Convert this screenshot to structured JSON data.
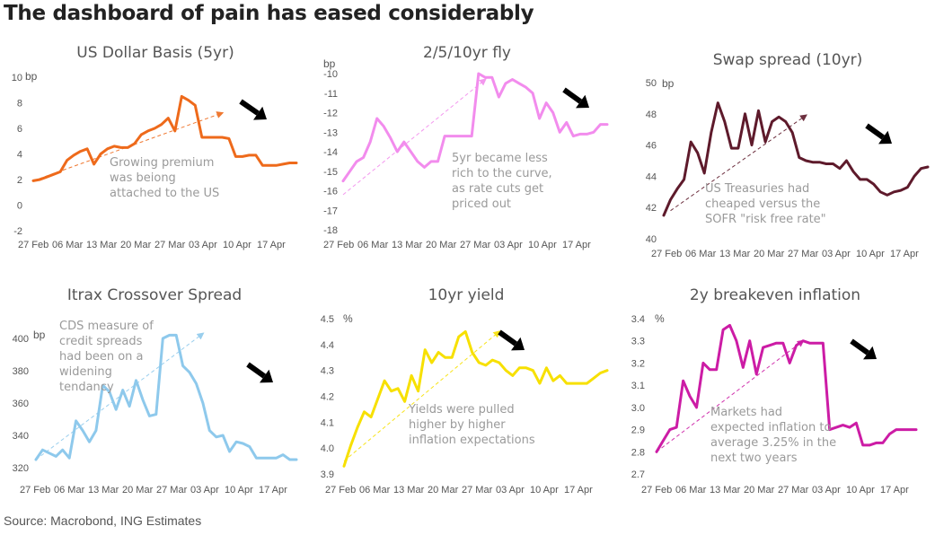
{
  "title": "The dashboard of pain has eased considerably",
  "source": "Source: Macrobond, ING Estimates",
  "chart_data": [
    {
      "type": "line",
      "title": "US Dollar Basis (5yr)",
      "unit": "bp",
      "color": "#ee6a1b",
      "x": [
        "27 Feb",
        "28 Feb",
        "03 Mar",
        "04 Mar",
        "05 Mar",
        "06 Mar",
        "07 Mar",
        "10 Mar",
        "11 Mar",
        "12 Mar",
        "13 Mar",
        "14 Mar",
        "17 Mar",
        "18 Mar",
        "19 Mar",
        "20 Mar",
        "21 Mar",
        "24 Mar",
        "25 Mar",
        "26 Mar",
        "27 Mar",
        "28 Mar",
        "31 Mar",
        "01 Apr",
        "02 Apr",
        "03 Apr",
        "04 Apr",
        "07 Apr",
        "08 Apr",
        "09 Apr",
        "10 Apr",
        "11 Apr",
        "14 Apr",
        "15 Apr",
        "16 Apr",
        "17 Apr",
        "18 Apr",
        "21 Apr",
        "22 Apr",
        "23 Apr"
      ],
      "y": [
        1.9,
        2.0,
        2.2,
        2.4,
        2.6,
        3.5,
        3.9,
        4.2,
        4.4,
        3.2,
        4.0,
        4.4,
        4.6,
        4.5,
        4.5,
        4.8,
        5.5,
        5.8,
        6.0,
        6.3,
        6.8,
        5.8,
        8.5,
        8.2,
        7.8,
        5.3,
        5.3,
        5.3,
        5.3,
        5.2,
        3.8,
        3.8,
        3.9,
        3.9,
        3.1,
        3.1,
        3.1,
        3.2,
        3.3,
        3.3
      ],
      "ylim": [
        -2,
        10
      ],
      "yticks": [
        -2,
        0,
        2,
        4,
        6,
        8,
        10
      ],
      "xtick_labels": [
        "27 Feb",
        "06 Mar",
        "13 Mar",
        "20 Mar",
        "27 Mar",
        "03 Apr",
        "10 Apr",
        "17 Apr"
      ],
      "annotation": [
        "Growing premium",
        "was beiong",
        "attached to the US"
      ]
    },
    {
      "type": "line",
      "title": "2/5/10yr fly",
      "unit": "bp",
      "color": "#f28ced",
      "x": [
        "27 Feb",
        "28 Feb",
        "03 Mar",
        "04 Mar",
        "05 Mar",
        "06 Mar",
        "07 Mar",
        "10 Mar",
        "11 Mar",
        "12 Mar",
        "13 Mar",
        "14 Mar",
        "17 Mar",
        "18 Mar",
        "19 Mar",
        "20 Mar",
        "21 Mar",
        "24 Mar",
        "25 Mar",
        "26 Mar",
        "27 Mar",
        "28 Mar",
        "31 Mar",
        "01 Apr",
        "02 Apr",
        "03 Apr",
        "04 Apr",
        "07 Apr",
        "08 Apr",
        "09 Apr",
        "10 Apr",
        "11 Apr",
        "14 Apr",
        "15 Apr",
        "16 Apr",
        "17 Apr",
        "18 Apr",
        "21 Apr",
        "22 Apr",
        "23 Apr"
      ],
      "y": [
        -15.5,
        -15.0,
        -14.5,
        -14.3,
        -13.5,
        -12.3,
        -12.7,
        -13.3,
        -14.0,
        -13.5,
        -14.0,
        -14.5,
        -14.8,
        -14.5,
        -14.5,
        -13.2,
        -13.2,
        -13.2,
        -13.2,
        -13.2,
        -10.0,
        -10.2,
        -10.2,
        -11.2,
        -10.5,
        -10.3,
        -10.5,
        -10.7,
        -11.0,
        -12.3,
        -11.5,
        -12.0,
        -13.0,
        -12.5,
        -13.2,
        -13.1,
        -13.1,
        -13.0,
        -12.6,
        -12.6
      ],
      "ylim": [
        -18,
        -10
      ],
      "yticks": [
        -18,
        -17,
        -16,
        -15,
        -14,
        -13,
        -12,
        -11,
        -10
      ],
      "xtick_labels": [
        "27 Feb",
        "06 Mar",
        "13 Mar",
        "20 Mar",
        "27 Mar",
        "03 Apr",
        "10 Apr",
        "17 Apr"
      ],
      "annotation": [
        "5yr became less",
        "rich to the curve,",
        "as rate cuts get",
        "priced out"
      ]
    },
    {
      "type": "line",
      "title": "Swap spread (10yr)",
      "unit": "bp",
      "color": "#5e1a2b",
      "x": [
        "27 Feb",
        "28 Feb",
        "03 Mar",
        "04 Mar",
        "05 Mar",
        "06 Mar",
        "07 Mar",
        "10 Mar",
        "11 Mar",
        "12 Mar",
        "13 Mar",
        "14 Mar",
        "17 Mar",
        "18 Mar",
        "19 Mar",
        "20 Mar",
        "21 Mar",
        "24 Mar",
        "25 Mar",
        "26 Mar",
        "27 Mar",
        "28 Mar",
        "31 Mar",
        "01 Apr",
        "02 Apr",
        "03 Apr",
        "04 Apr",
        "07 Apr",
        "08 Apr",
        "09 Apr",
        "10 Apr",
        "11 Apr",
        "14 Apr",
        "15 Apr",
        "16 Apr",
        "17 Apr",
        "18 Apr",
        "21 Apr",
        "22 Apr",
        "23 Apr"
      ],
      "y": [
        41.5,
        42.5,
        43.2,
        43.8,
        46.2,
        45.5,
        44.2,
        46.8,
        48.7,
        47.5,
        45.8,
        45.8,
        48.0,
        46.0,
        48.2,
        46.2,
        47.5,
        47.8,
        47.5,
        46.8,
        45.2,
        45.0,
        44.9,
        44.9,
        44.8,
        44.8,
        44.5,
        45.0,
        44.3,
        43.8,
        43.8,
        43.5,
        43.0,
        42.8,
        43.0,
        43.1,
        43.3,
        44.0,
        44.5,
        44.6
      ],
      "ylim": [
        40,
        50
      ],
      "yticks": [
        40,
        42,
        44,
        46,
        48,
        50
      ],
      "xtick_labels": [
        "27 Feb",
        "06 Mar",
        "13 Mar",
        "20 Mar",
        "27 Mar",
        "03 Apr",
        "10 Apr",
        "17 Apr"
      ],
      "annotation": [
        "US Treasuries had",
        "cheaped versus the",
        "SOFR \"risk free rate\""
      ]
    },
    {
      "type": "line",
      "title": "Itrax Crossover Spread",
      "unit": "bp",
      "color": "#8ec9ec",
      "x": [
        "27 Feb",
        "28 Feb",
        "03 Mar",
        "04 Mar",
        "05 Mar",
        "06 Mar",
        "07 Mar",
        "10 Mar",
        "11 Mar",
        "12 Mar",
        "13 Mar",
        "14 Mar",
        "17 Mar",
        "18 Mar",
        "19 Mar",
        "20 Mar",
        "21 Mar",
        "24 Mar",
        "25 Mar",
        "26 Mar",
        "27 Mar",
        "28 Mar",
        "31 Mar",
        "01 Apr",
        "02 Apr",
        "03 Apr",
        "04 Apr",
        "07 Apr",
        "08 Apr",
        "09 Apr",
        "10 Apr",
        "11 Apr",
        "14 Apr",
        "15 Apr",
        "16 Apr",
        "17 Apr",
        "18 Apr",
        "21 Apr",
        "22 Apr",
        "23 Apr"
      ],
      "y": [
        325,
        331,
        329,
        327,
        331,
        326,
        349,
        343,
        336,
        343,
        371,
        367,
        356,
        368,
        358,
        374,
        362,
        352,
        353,
        400,
        402,
        402,
        383,
        379,
        372,
        360,
        343,
        339,
        340,
        330,
        336,
        335,
        333,
        326,
        326,
        326,
        326,
        328,
        325,
        325
      ],
      "ylim": [
        320,
        410
      ],
      "yticks": [
        320,
        340,
        360,
        380,
        400
      ],
      "xtick_labels": [
        "27 Feb",
        "06 Mar",
        "13 Mar",
        "20 Mar",
        "27 Mar",
        "03 Apr",
        "10 Apr",
        "17 Apr"
      ],
      "annotation": [
        "CDS measure of",
        "credit spreads",
        "had been on a",
        "widening",
        "tendancy"
      ]
    },
    {
      "type": "line",
      "title": "10yr yield",
      "unit": "%",
      "color": "#f7e000",
      "x": [
        "27 Feb",
        "28 Feb",
        "03 Mar",
        "04 Mar",
        "05 Mar",
        "06 Mar",
        "07 Mar",
        "10 Mar",
        "11 Mar",
        "12 Mar",
        "13 Mar",
        "14 Mar",
        "17 Mar",
        "18 Mar",
        "19 Mar",
        "20 Mar",
        "21 Mar",
        "24 Mar",
        "25 Mar",
        "26 Mar",
        "27 Mar",
        "28 Mar",
        "31 Mar",
        "01 Apr",
        "02 Apr",
        "03 Apr",
        "04 Apr",
        "07 Apr",
        "08 Apr",
        "09 Apr",
        "10 Apr",
        "11 Apr",
        "14 Apr",
        "15 Apr",
        "16 Apr",
        "17 Apr",
        "18 Apr",
        "21 Apr",
        "22 Apr",
        "23 Apr"
      ],
      "y": [
        3.93,
        4.01,
        4.08,
        4.14,
        4.12,
        4.19,
        4.26,
        4.22,
        4.23,
        4.18,
        4.28,
        4.22,
        4.38,
        4.33,
        4.37,
        4.35,
        4.35,
        4.43,
        4.45,
        4.37,
        4.33,
        4.32,
        4.34,
        4.33,
        4.3,
        4.28,
        4.31,
        4.31,
        4.3,
        4.25,
        4.31,
        4.26,
        4.28,
        4.25,
        4.25,
        4.25,
        4.25,
        4.27,
        4.29,
        4.3
      ],
      "ylim": [
        3.9,
        4.5
      ],
      "yticks": [
        3.9,
        4.0,
        4.1,
        4.2,
        4.3,
        4.4,
        4.5
      ],
      "xtick_labels": [
        "27 Feb",
        "06 Mar",
        "13 Mar",
        "20 Mar",
        "27 Mar",
        "03 Apr",
        "10 Apr",
        "17 Apr"
      ],
      "annotation": [
        "Yields were pulled",
        "higher by higher",
        "inflation expectations"
      ]
    },
    {
      "type": "line",
      "title": "2y breakeven inflation",
      "unit": "%",
      "color": "#cc1ca5",
      "x": [
        "27 Feb",
        "28 Feb",
        "03 Mar",
        "04 Mar",
        "05 Mar",
        "06 Mar",
        "07 Mar",
        "10 Mar",
        "11 Mar",
        "12 Mar",
        "13 Mar",
        "14 Mar",
        "17 Mar",
        "18 Mar",
        "19 Mar",
        "20 Mar",
        "21 Mar",
        "24 Mar",
        "25 Mar",
        "26 Mar",
        "27 Mar",
        "28 Mar",
        "31 Mar",
        "01 Apr",
        "02 Apr",
        "03 Apr",
        "04 Apr",
        "07 Apr",
        "08 Apr",
        "09 Apr",
        "10 Apr",
        "11 Apr",
        "14 Apr",
        "15 Apr",
        "16 Apr",
        "17 Apr",
        "18 Apr",
        "21 Apr",
        "22 Apr",
        "23 Apr"
      ],
      "y": [
        2.8,
        2.85,
        2.9,
        2.91,
        3.12,
        3.05,
        3.0,
        3.2,
        3.17,
        3.17,
        3.35,
        3.37,
        3.3,
        3.18,
        3.3,
        3.15,
        3.27,
        3.28,
        3.29,
        3.29,
        3.2,
        3.28,
        3.3,
        3.29,
        3.29,
        3.29,
        2.9,
        2.91,
        2.92,
        2.91,
        2.93,
        2.83,
        2.83,
        2.84,
        2.84,
        2.88,
        2.9,
        2.9,
        2.9,
        2.9
      ],
      "ylim": [
        2.7,
        3.4
      ],
      "yticks": [
        2.7,
        2.8,
        2.9,
        3.0,
        3.1,
        3.2,
        3.3,
        3.4
      ],
      "xtick_labels": [
        "27 Feb",
        "06 Mar",
        "13 Mar",
        "20 Mar",
        "27 Mar",
        "03 Apr",
        "10 Apr",
        "17 Apr"
      ],
      "annotation": [
        "Markets had",
        "expected inflation to",
        "average 3.25% in the",
        "next two years"
      ]
    }
  ]
}
